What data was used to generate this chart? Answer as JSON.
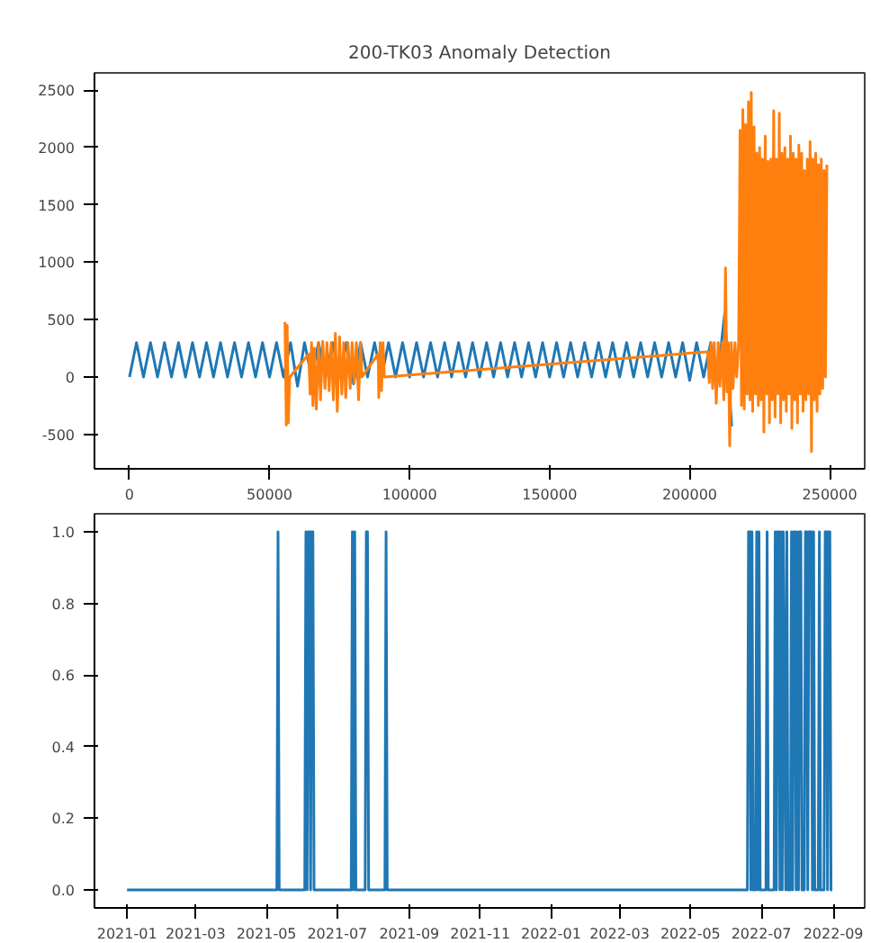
{
  "chart_data": [
    {
      "type": "line",
      "title": "200-TK03 Anomaly Detection",
      "xlim": [
        -12500,
        262500
      ],
      "ylim": [
        -800,
        2650
      ],
      "xticks": [
        0,
        50000,
        100000,
        150000,
        200000,
        250000
      ],
      "yticks": [
        -500,
        0,
        500,
        1000,
        1500,
        2000,
        2500
      ],
      "grid": false,
      "series": [
        {
          "color": "#1f77b4",
          "x": [
            0,
            2500,
            5000,
            7500,
            10000,
            12500,
            15000,
            17500,
            20000,
            22500,
            25000,
            27500,
            30000,
            32500,
            35000,
            37500,
            40000,
            42500,
            45000,
            47500,
            50000,
            52500,
            55000,
            57500,
            60000,
            62500,
            65000,
            67500,
            70000,
            72500,
            75000,
            77500,
            80000,
            82500,
            85000,
            87500,
            90000,
            92500,
            95000,
            97500,
            100000,
            102500,
            105000,
            107500,
            110000,
            112500,
            115000,
            117500,
            120000,
            122500,
            125000,
            127500,
            130000,
            132500,
            135000,
            137500,
            140000,
            142500,
            145000,
            147500,
            150000,
            152500,
            155000,
            157500,
            160000,
            162500,
            165000,
            167500,
            170000,
            172500,
            175000,
            177500,
            180000,
            182500,
            185000,
            187500,
            190000,
            192500,
            195000,
            197500,
            200000,
            202500,
            205000,
            207500,
            210000,
            212500,
            215000
          ],
          "values": [
            0,
            300,
            0,
            300,
            0,
            300,
            0,
            300,
            0,
            300,
            0,
            300,
            0,
            300,
            0,
            300,
            0,
            300,
            0,
            300,
            0,
            300,
            0,
            300,
            -80,
            300,
            0,
            300,
            0,
            300,
            0,
            300,
            -60,
            300,
            0,
            300,
            0,
            300,
            0,
            300,
            0,
            300,
            0,
            300,
            0,
            300,
            0,
            300,
            0,
            300,
            0,
            300,
            0,
            300,
            0,
            300,
            0,
            300,
            0,
            300,
            0,
            300,
            0,
            300,
            0,
            300,
            0,
            300,
            0,
            300,
            0,
            300,
            0,
            300,
            0,
            300,
            0,
            300,
            0,
            300,
            -30,
            300,
            0,
            300,
            0,
            550,
            -430
          ]
        },
        {
          "color": "#ff7f0e",
          "x": [
            55500,
            56000,
            56300,
            56700,
            57200,
            64000,
            64500,
            65000,
            65500,
            66000,
            66700,
            67500,
            68200,
            69000,
            69800,
            70500,
            71300,
            72000,
            72800,
            73500,
            74200,
            75000,
            75800,
            76500,
            77200,
            78000,
            78800,
            79500,
            80200,
            81000,
            81800,
            82500,
            83000,
            88800,
            89000,
            89500,
            90000,
            90500,
            91000,
            206500,
            207000,
            207600,
            208200,
            208800,
            209500,
            210200,
            210800,
            211500,
            212200,
            212800,
            213300,
            213800,
            214300,
            214900,
            215500,
            216200,
            216800,
            217500,
            218000,
            218500,
            219000,
            219500,
            220000,
            220500,
            221000,
            221500,
            222000,
            222500,
            223000,
            223500,
            224000,
            224500,
            225000,
            225500,
            226000,
            226500,
            227000,
            227500,
            228000,
            228500,
            229000,
            229500,
            230000,
            230500,
            231000,
            231500,
            232000,
            232500,
            233000,
            233500,
            234000,
            234500,
            235000,
            235500,
            236000,
            236500,
            237000,
            237500,
            238000,
            238500,
            239000,
            239500,
            240000,
            240500,
            241000,
            241500,
            242000,
            242500,
            243000,
            243500,
            244000,
            244500,
            245000,
            245500,
            246000,
            246500,
            247000,
            247500,
            248000,
            248500,
            249000
          ],
          "values": [
            480,
            -420,
            450,
            -400,
            0,
            200,
            -150,
            300,
            -250,
            250,
            -280,
            300,
            -200,
            310,
            -100,
            300,
            -120,
            300,
            -200,
            380,
            -300,
            350,
            -150,
            300,
            -180,
            300,
            -100,
            300,
            -50,
            300,
            -200,
            300,
            0,
            200,
            -180,
            300,
            -120,
            300,
            0,
            220,
            -50,
            300,
            -100,
            300,
            -230,
            300,
            -80,
            300,
            -200,
            950,
            -130,
            300,
            -600,
            300,
            -100,
            300,
            0,
            300,
            2150,
            -250,
            2330,
            -280,
            2200,
            -150,
            2400,
            -200,
            2480,
            -300,
            2180,
            -150,
            1950,
            -250,
            2000,
            -200,
            1900,
            -480,
            2100,
            -150,
            1880,
            -400,
            1900,
            -200,
            2320,
            -350,
            1900,
            -150,
            2300,
            -400,
            1950,
            -200,
            2000,
            -300,
            1900,
            -150,
            2100,
            -450,
            1950,
            -200,
            1900,
            -400,
            2020,
            -150,
            1950,
            -300,
            1800,
            -200,
            1900,
            -150,
            2050,
            -650,
            1900,
            -200,
            1950,
            -300,
            1850,
            -150,
            1900,
            -100,
            1800,
            0,
            1850
          ]
        }
      ]
    },
    {
      "type": "line",
      "xlim": [
        "2020-12-04",
        "2022-09-28"
      ],
      "ylim": [
        -0.05,
        1.05
      ],
      "xticks": [
        {
          "value": "2021-01-01",
          "label": "2021-01"
        },
        {
          "value": "2021-03-01",
          "label": "2021-03"
        },
        {
          "value": "2021-05-01",
          "label": "2021-05"
        },
        {
          "value": "2021-07-01",
          "label": "2021-07"
        },
        {
          "value": "2021-09-01",
          "label": "2021-09"
        },
        {
          "value": "2021-11-01",
          "label": "2021-11"
        },
        {
          "value": "2022-01-01",
          "label": "2022-01"
        },
        {
          "value": "2022-03-01",
          "label": "2022-03"
        },
        {
          "value": "2022-05-01",
          "label": "2022-05"
        },
        {
          "value": "2022-07-01",
          "label": "2022-07"
        },
        {
          "value": "2022-09-01",
          "label": "2022-09"
        }
      ],
      "yticks": [
        {
          "value": 0,
          "label": "0.0"
        },
        {
          "value": 0.2,
          "label": "0.2"
        },
        {
          "value": 0.4,
          "label": "0.4"
        },
        {
          "value": 0.6,
          "label": "0.6"
        },
        {
          "value": 0.8,
          "label": "0.8"
        },
        {
          "value": 1,
          "label": "1.0"
        }
      ],
      "grid": false,
      "series": [
        {
          "color": "#1f77b4",
          "x": [
            "2021-01-01",
            "2021-05-10",
            "2021-05-11",
            "2021-05-12",
            "2021-06-03",
            "2021-06-04",
            "2021-06-05",
            "2021-06-06",
            "2021-06-07",
            "2021-06-08",
            "2021-06-09",
            "2021-06-10",
            "2021-06-11",
            "2021-07-13",
            "2021-07-14",
            "2021-07-15",
            "2021-07-16",
            "2021-07-17",
            "2021-07-25",
            "2021-07-26",
            "2021-07-27",
            "2021-07-28",
            "2021-08-11",
            "2021-08-12",
            "2021-08-13",
            "2022-06-19",
            "2022-06-20",
            "2022-06-21",
            "2022-06-22",
            "2022-06-23",
            "2022-06-24",
            "2022-06-26",
            "2022-06-27",
            "2022-06-28",
            "2022-06-29",
            "2022-06-30",
            "2022-07-05",
            "2022-07-06",
            "2022-07-07",
            "2022-07-12",
            "2022-07-13",
            "2022-07-14",
            "2022-07-15",
            "2022-07-16",
            "2022-07-17",
            "2022-07-18",
            "2022-07-19",
            "2022-07-20",
            "2022-07-22",
            "2022-07-23",
            "2022-07-24",
            "2022-07-26",
            "2022-07-27",
            "2022-07-28",
            "2022-07-29",
            "2022-07-30",
            "2022-07-31",
            "2022-08-01",
            "2022-08-02",
            "2022-08-03",
            "2022-08-04",
            "2022-08-05",
            "2022-08-07",
            "2022-08-08",
            "2022-08-09",
            "2022-08-10",
            "2022-08-11",
            "2022-08-12",
            "2022-08-13",
            "2022-08-14",
            "2022-08-15",
            "2022-08-16",
            "2022-08-19",
            "2022-08-20",
            "2022-08-21",
            "2022-08-24",
            "2022-08-25",
            "2022-08-26",
            "2022-08-27",
            "2022-08-28",
            "2022-08-29",
            "2022-08-30",
            "2022-08-31"
          ],
          "values": [
            0,
            0,
            1,
            0,
            0,
            1,
            0,
            1,
            1,
            0,
            1,
            1,
            0,
            0,
            1,
            0,
            1,
            0,
            0,
            1,
            1,
            0,
            0,
            1,
            0,
            0,
            1,
            1,
            0,
            1,
            0,
            0,
            1,
            0,
            1,
            0,
            0,
            1,
            0,
            0,
            1,
            0,
            1,
            1,
            0,
            1,
            0,
            1,
            0,
            1,
            0,
            0,
            1,
            0,
            1,
            1,
            0,
            1,
            0,
            1,
            1,
            0,
            0,
            1,
            1,
            0,
            1,
            1,
            1,
            0,
            1,
            0,
            0,
            1,
            0,
            0,
            1,
            1,
            0,
            1,
            1,
            0,
            0
          ]
        }
      ]
    }
  ]
}
